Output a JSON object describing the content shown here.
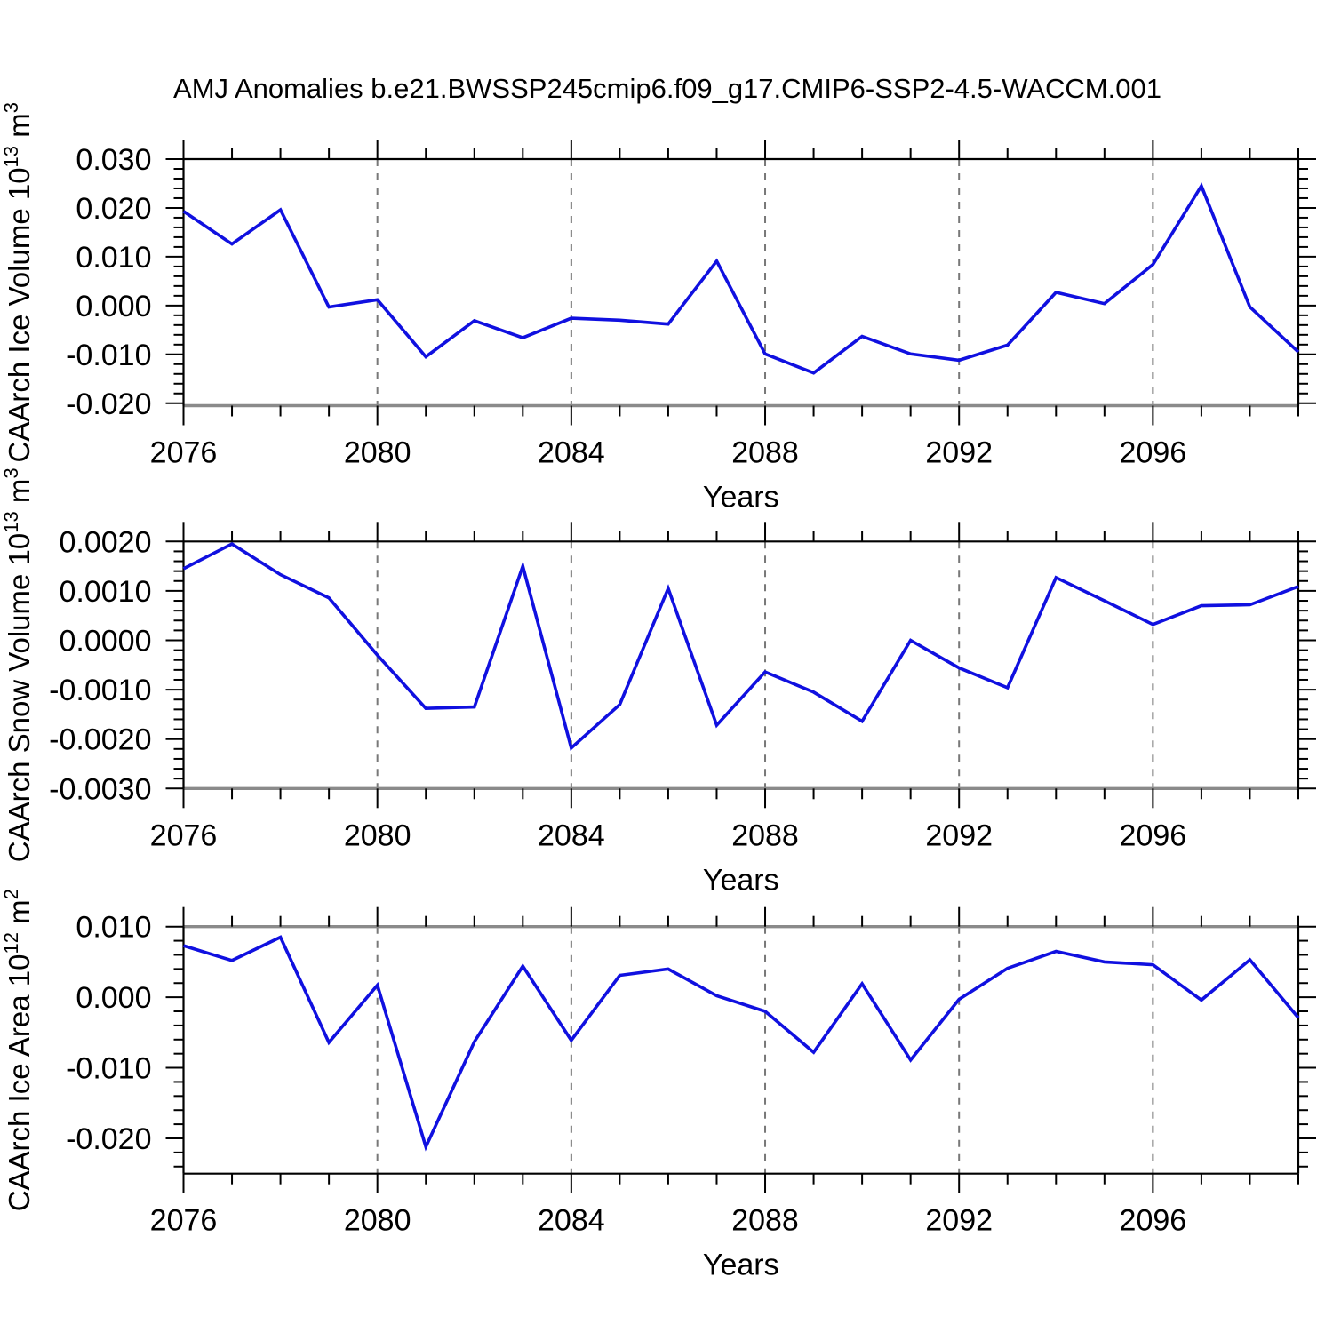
{
  "title": "AMJ Anomalies b.e21.BWSSP245cmip6.f09_g17.CMIP6-SSP2-4.5-WACCM.001",
  "x_axis": {
    "label": "Years",
    "years_start": 2076,
    "years_end": 2099,
    "labeled_ticks": [
      2076,
      2080,
      2084,
      2088,
      2092,
      2096
    ],
    "gridline_years": [
      2080,
      2084,
      2088,
      2092,
      2096
    ]
  },
  "colors": {
    "line": "#1010e0",
    "grid": "#787878",
    "axis": "#000000",
    "grey_spine": "#8a8a8a",
    "text": "#000000",
    "background": "#ffffff"
  },
  "chart_data": [
    {
      "type": "line",
      "name": "caarch-ice-volume",
      "xlabel": "Years",
      "ylabel": "CAArch Ice Volume 10^13 m^3",
      "ylabel_segments": [
        {
          "t": "CAArch Ice Volume 10"
        },
        {
          "t": "13",
          "sup": true
        },
        {
          "t": " m"
        },
        {
          "t": "3",
          "sup": true
        }
      ],
      "ylim": [
        -0.0205,
        0.03
      ],
      "major_step": 0.01,
      "minor_step": 0.002,
      "ytick_values": [
        0.03,
        0.02,
        0.01,
        0.0,
        -0.01,
        -0.02
      ],
      "ytick_labels": [
        "0.030",
        "0.020",
        "0.010",
        "0.000",
        "-0.010",
        "-0.020"
      ],
      "years": [
        2076,
        2077,
        2078,
        2079,
        2080,
        2081,
        2082,
        2083,
        2084,
        2085,
        2086,
        2087,
        2088,
        2089,
        2090,
        2091,
        2092,
        2093,
        2094,
        2095,
        2096,
        2097,
        2098,
        2099
      ],
      "values": [
        0.0193,
        0.0126,
        0.0196,
        -0.0003,
        0.0012,
        -0.0105,
        -0.0031,
        -0.0066,
        -0.0026,
        -0.003,
        -0.0038,
        0.0091,
        -0.0099,
        -0.0138,
        -0.0063,
        -0.0099,
        -0.0112,
        -0.0081,
        0.0027,
        0.0004,
        0.0084,
        0.0245,
        -0.0003,
        -0.0095
      ]
    },
    {
      "type": "line",
      "name": "caarch-snow-volume",
      "xlabel": "Years",
      "ylabel": "CAArch Snow Volume 10^13 m^3",
      "ylabel_segments": [
        {
          "t": "CAArch Snow Volume 10"
        },
        {
          "t": "13",
          "sup": true
        },
        {
          "t": " m"
        },
        {
          "t": "3",
          "sup": true
        }
      ],
      "ylim": [
        -0.003,
        0.002
      ],
      "major_step": 0.001,
      "minor_step": 0.0002,
      "ytick_values": [
        0.002,
        0.001,
        0.0,
        -0.001,
        -0.002,
        -0.003
      ],
      "ytick_labels": [
        "0.0020",
        "0.0010",
        "0.0000",
        "-0.0010",
        "-0.0020",
        "-0.0030"
      ],
      "years": [
        2076,
        2077,
        2078,
        2079,
        2080,
        2081,
        2082,
        2083,
        2084,
        2085,
        2086,
        2087,
        2088,
        2089,
        2090,
        2091,
        2092,
        2093,
        2094,
        2095,
        2096,
        2097,
        2098,
        2099
      ],
      "values": [
        0.00145,
        0.00195,
        0.00133,
        0.00086,
        -0.0003,
        -0.00138,
        -0.00135,
        0.0015,
        -0.00218,
        -0.0013,
        0.00105,
        -0.00172,
        -0.00064,
        -0.00105,
        -0.00164,
        0.0,
        -0.00056,
        -0.00096,
        0.00127,
        0.0008,
        0.00032,
        0.0007,
        0.00072,
        0.00109
      ]
    },
    {
      "type": "line",
      "name": "caarch-ice-area",
      "xlabel": "Years",
      "ylabel": "CAArch Ice Area 10^12 m^2",
      "ylabel_segments": [
        {
          "t": "CAArch Ice Area 10"
        },
        {
          "t": "12",
          "sup": true
        },
        {
          "t": " m"
        },
        {
          "t": "2",
          "sup": true
        }
      ],
      "ylim": [
        -0.025,
        0.01
      ],
      "major_step": 0.01,
      "minor_step": 0.002,
      "ytick_values": [
        0.01,
        0.0,
        -0.01,
        -0.02
      ],
      "ytick_labels": [
        "0.010",
        "0.000",
        "-0.010",
        "-0.020"
      ],
      "years": [
        2076,
        2077,
        2078,
        2079,
        2080,
        2081,
        2082,
        2083,
        2084,
        2085,
        2086,
        2087,
        2088,
        2089,
        2090,
        2091,
        2092,
        2093,
        2094,
        2095,
        2096,
        2097,
        2098,
        2099
      ],
      "values": [
        0.0073,
        0.0052,
        0.0085,
        -0.0064,
        0.0017,
        -0.0212,
        -0.0063,
        0.0044,
        -0.0061,
        0.0031,
        0.004,
        0.0002,
        -0.002,
        -0.0078,
        0.0019,
        -0.0089,
        -0.0003,
        0.0041,
        0.0065,
        0.005,
        0.0046,
        -0.0004,
        0.0053,
        -0.0029
      ]
    }
  ]
}
